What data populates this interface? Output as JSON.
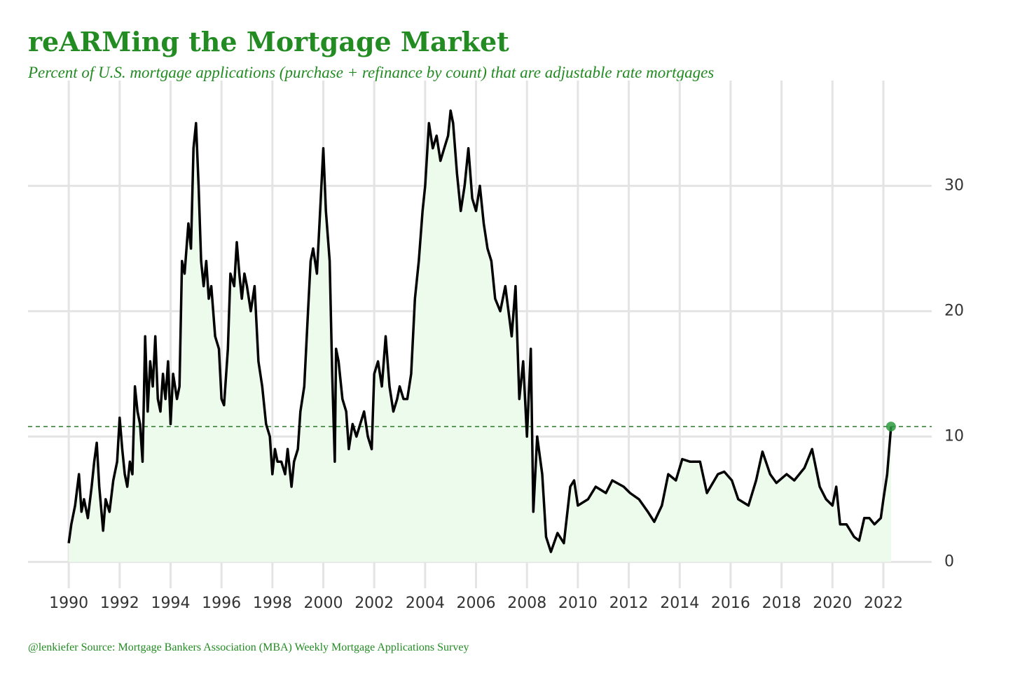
{
  "chart_data": {
    "type": "line",
    "title": "reARMing the Mortgage Market",
    "subtitle": "Percent of U.S. mortgage applications (purchase + refinance by count) that are adjustable rate mortgages",
    "caption": "@lenkiefer Source: Mortgage Bankers Association (MBA) Weekly Mortgage Applications Survey",
    "x": [
      1990.0,
      1990.1,
      1990.25,
      1990.4,
      1990.5,
      1990.6,
      1990.75,
      1990.9,
      1991.0,
      1991.1,
      1991.2,
      1991.35,
      1991.45,
      1991.6,
      1991.75,
      1991.9,
      1992.0,
      1992.1,
      1992.2,
      1992.3,
      1992.4,
      1992.5,
      1992.6,
      1992.7,
      1992.8,
      1992.9,
      1993.0,
      1993.1,
      1993.2,
      1993.3,
      1993.4,
      1993.5,
      1993.6,
      1993.7,
      1993.8,
      1993.9,
      1994.0,
      1994.1,
      1994.25,
      1994.35,
      1994.45,
      1994.55,
      1994.7,
      1994.8,
      1994.9,
      1995.0,
      1995.1,
      1995.2,
      1995.3,
      1995.4,
      1995.5,
      1995.6,
      1995.75,
      1995.9,
      1996.0,
      1996.1,
      1996.25,
      1996.35,
      1996.5,
      1996.6,
      1996.7,
      1996.8,
      1996.9,
      1997.0,
      1997.15,
      1997.3,
      1997.45,
      1997.6,
      1997.75,
      1997.9,
      1998.0,
      1998.1,
      1998.2,
      1998.35,
      1998.5,
      1998.6,
      1998.75,
      1998.85,
      1999.0,
      1999.1,
      1999.25,
      1999.4,
      1999.5,
      1999.6,
      1999.75,
      1999.9,
      2000.0,
      2000.1,
      2000.25,
      2000.35,
      2000.45,
      2000.5,
      2000.6,
      2000.75,
      2000.9,
      2001.0,
      2001.15,
      2001.3,
      2001.45,
      2001.6,
      2001.75,
      2001.9,
      2002.0,
      2002.15,
      2002.3,
      2002.45,
      2002.6,
      2002.75,
      2002.9,
      2003.0,
      2003.15,
      2003.3,
      2003.45,
      2003.6,
      2003.75,
      2003.9,
      2004.0,
      2004.15,
      2004.3,
      2004.45,
      2004.6,
      2004.75,
      2004.9,
      2005.0,
      2005.1,
      2005.25,
      2005.4,
      2005.55,
      2005.7,
      2005.85,
      2006.0,
      2006.15,
      2006.3,
      2006.45,
      2006.6,
      2006.75,
      2006.95,
      2007.15,
      2007.4,
      2007.55,
      2007.7,
      2007.85,
      2008.0,
      2008.15,
      2008.25,
      2008.4,
      2008.6,
      2008.75,
      2008.94,
      2009.2,
      2009.45,
      2009.7,
      2009.85,
      2010.0,
      2010.4,
      2010.7,
      2011.1,
      2011.35,
      2011.8,
      2012.05,
      2012.4,
      2012.75,
      2013.0,
      2013.3,
      2013.55,
      2013.85,
      2014.1,
      2014.4,
      2014.8,
      2015.07,
      2015.5,
      2015.75,
      2016.05,
      2016.3,
      2016.7,
      2017.0,
      2017.25,
      2017.55,
      2017.8,
      2018.2,
      2018.5,
      2018.9,
      2019.2,
      2019.5,
      2019.75,
      2020.0,
      2020.15,
      2020.3,
      2020.55,
      2020.85,
      2021.05,
      2021.25,
      2021.45,
      2021.65,
      2021.9,
      2022.0,
      2022.15,
      2022.3
    ],
    "values": [
      1.5,
      3,
      4.5,
      7,
      4,
      5,
      3.5,
      6,
      8,
      9.5,
      6,
      2.5,
      5,
      4,
      6.5,
      8,
      11.5,
      9,
      7,
      6,
      8,
      7,
      14,
      12,
      11,
      8,
      18,
      12,
      16,
      14,
      18,
      13,
      12,
      15,
      13,
      16,
      11,
      15,
      13,
      14,
      24,
      23,
      27,
      25,
      33,
      35,
      30,
      24,
      22,
      24,
      21,
      22,
      18,
      17,
      13,
      12.5,
      17,
      23,
      22,
      25.5,
      23,
      21,
      23,
      22,
      20,
      22,
      16,
      14,
      11,
      10,
      7,
      9,
      8,
      8,
      7,
      9,
      6,
      8,
      9,
      12,
      14,
      20,
      24,
      25,
      23,
      29,
      33,
      28,
      24,
      15,
      8,
      17,
      16,
      13,
      12,
      9,
      11,
      10,
      11,
      12,
      10,
      9,
      15,
      16,
      14,
      18,
      14,
      12,
      13,
      14,
      13,
      13,
      15,
      21,
      24,
      28,
      30,
      35,
      33,
      34,
      32,
      33,
      34,
      36,
      35,
      31,
      28,
      30,
      33,
      29,
      28,
      30,
      27,
      25,
      24,
      21,
      20,
      22,
      18,
      22,
      13,
      16,
      10,
      17,
      4,
      10,
      7,
      2,
      0.8,
      2.3,
      1.5,
      6,
      6.5,
      4.5,
      5,
      6,
      5.5,
      6.5,
      6,
      5.5,
      5,
      4,
      3.2,
      4.5,
      7,
      6.5,
      8.2,
      8,
      8,
      5.5,
      7,
      7.2,
      6.5,
      5,
      4.5,
      6.5,
      8.8,
      7,
      6.3,
      7,
      6.5,
      7.5,
      9,
      6,
      5,
      4.5,
      6,
      3,
      3,
      2,
      1.7,
      3.5,
      3.5,
      3,
      3.5,
      5,
      7,
      10.8
    ],
    "color": "#000000",
    "fill_color": "#ecfbec",
    "highlight_color": "#2e9a3e",
    "reference_line": 10.8,
    "xlim": [
      1988.4,
      2023.9
    ],
    "ylim": [
      -2.1,
      38.4
    ],
    "xticks": [
      1990,
      1992,
      1994,
      1996,
      1998,
      2000,
      2002,
      2004,
      2006,
      2008,
      2010,
      2012,
      2014,
      2016,
      2018,
      2020,
      2022
    ],
    "yticks": [
      0,
      10,
      20,
      30
    ],
    "grid": true
  }
}
